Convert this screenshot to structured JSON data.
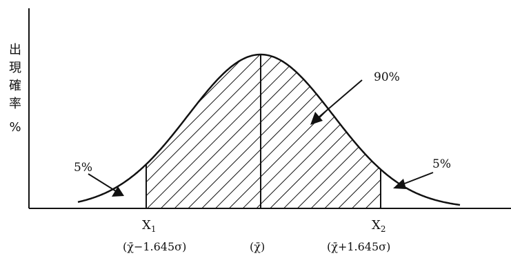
{
  "y_axis_label_chars": [
    "出",
    "現",
    "確",
    "率"
  ],
  "y_axis_unit": "%",
  "annotations": {
    "center_area": "90%",
    "left_tail": "5%",
    "right_tail": "5%"
  },
  "x_markers": {
    "x1": {
      "name": "X",
      "sub": "1",
      "formula": "(χ̄−1.645σ)"
    },
    "mean": {
      "formula": "(χ̄)"
    },
    "x2": {
      "name": "X",
      "sub": "2",
      "formula": "(χ̄+1.645σ)"
    }
  },
  "colors": {
    "ink": "#111111",
    "background": "#ffffff"
  }
}
